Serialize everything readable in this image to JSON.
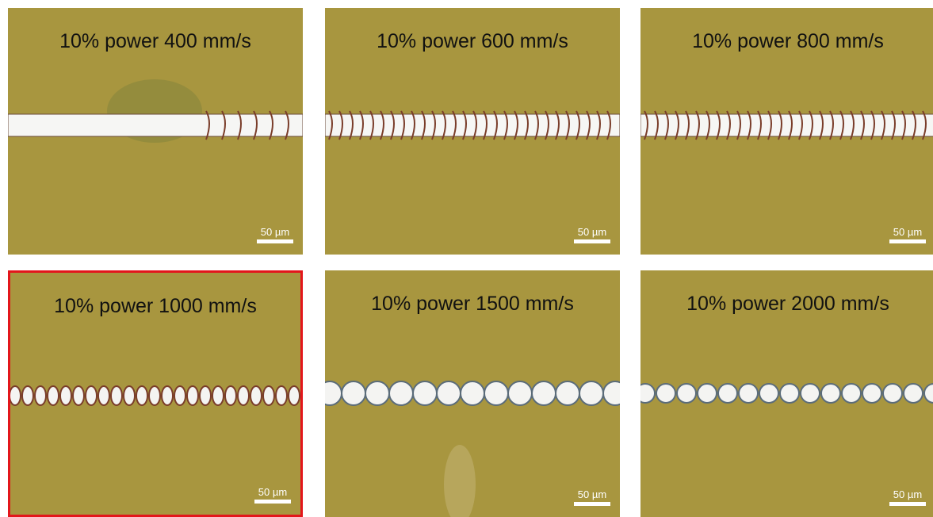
{
  "panels": [
    {
      "label": "10% power 400 mm/s",
      "scale": "50 µm"
    },
    {
      "label": "10% power 600 mm/s",
      "scale": "50 µm"
    },
    {
      "label": "10% power 800 mm/s",
      "scale": "50 µm"
    },
    {
      "label": "10% power 1000 mm/s",
      "scale": "50 µm"
    },
    {
      "label": "10% power 1500 mm/s",
      "scale": "50 µm"
    },
    {
      "label": "10% power 2000 mm/s",
      "scale": "50 µm"
    }
  ]
}
